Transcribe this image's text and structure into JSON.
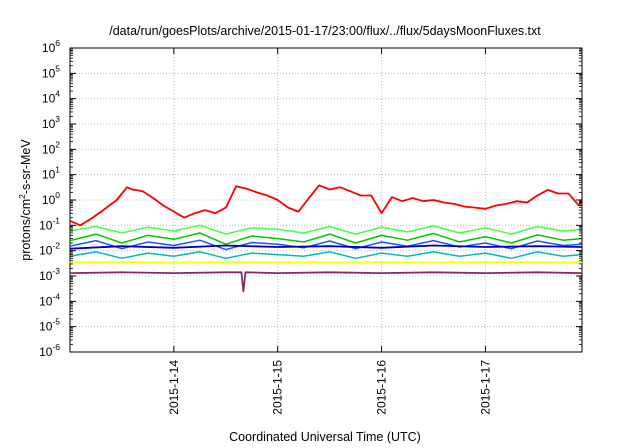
{
  "chart_data": {
    "type": "line",
    "title": "/data/run/goesPlots/archive/2015-01-17/23:00/flux/../flux/5daysMoonFluxes.txt",
    "xlabel": "Coordinated Universal Time (UTC)",
    "ylabel": "protons/cm²-s-sr-MeV",
    "ylabel_parts": {
      "pre": "protons/cm",
      "sup": "2",
      "post": "-s-sr-MeV"
    },
    "yscale": "log",
    "ylim": [
      1e-06,
      1000000.0
    ],
    "xlim": [
      0,
      4.93
    ],
    "x_units": "days after 2015-01-13 00:00 UTC",
    "grid": true,
    "legend": "none",
    "x_ticks": [
      {
        "x": 1,
        "label": "2015-1-14"
      },
      {
        "x": 2,
        "label": "2015-1-15"
      },
      {
        "x": 3,
        "label": "2015-1-16"
      },
      {
        "x": 4,
        "label": "2015-1-17"
      }
    ],
    "y_ticks": [
      {
        "exp": 6,
        "base": "10",
        "sup": "6"
      },
      {
        "exp": 5,
        "base": "10",
        "sup": "5"
      },
      {
        "exp": 4,
        "base": "10",
        "sup": "4"
      },
      {
        "exp": 3,
        "base": "10",
        "sup": "3"
      },
      {
        "exp": 2,
        "base": "10",
        "sup": "2"
      },
      {
        "exp": 1,
        "base": "10",
        "sup": "1"
      },
      {
        "exp": 0,
        "base": "10",
        "sup": "0"
      },
      {
        "exp": -1,
        "base": "10",
        "sup": "-1"
      },
      {
        "exp": -2,
        "base": "10",
        "sup": "-2"
      },
      {
        "exp": -3,
        "base": "10",
        "sup": "-3"
      },
      {
        "exp": -4,
        "base": "10",
        "sup": "-4"
      },
      {
        "exp": -5,
        "base": "10",
        "sup": "-5"
      },
      {
        "exp": -6,
        "base": "10",
        "sup": "-6"
      }
    ],
    "series": [
      {
        "color": "#ffff00",
        "lw": 1.8,
        "x": [
          0,
          0.5,
          1.0,
          1.5,
          2.0,
          2.5,
          3.0,
          3.5,
          4.0,
          4.5,
          4.93
        ],
        "y": [
          0.0035,
          0.0035,
          0.0034,
          0.0035,
          0.0035,
          0.0034,
          0.0035,
          0.0034,
          0.0035,
          0.0035,
          0.0034
        ]
      },
      {
        "color": "#00bbbb",
        "lw": 1.5,
        "x": [
          0,
          0.25,
          0.5,
          0.75,
          1.0,
          1.25,
          1.5,
          1.75,
          2.0,
          2.25,
          2.5,
          2.75,
          3.0,
          3.25,
          3.5,
          3.75,
          4.0,
          4.25,
          4.5,
          4.75,
          4.93
        ],
        "y": [
          0.006,
          0.009,
          0.005,
          0.008,
          0.006,
          0.009,
          0.005,
          0.008,
          0.007,
          0.006,
          0.009,
          0.005,
          0.008,
          0.006,
          0.009,
          0.006,
          0.008,
          0.005,
          0.009,
          0.006,
          0.007
        ]
      },
      {
        "color": "#1a56ff",
        "lw": 1.5,
        "x": [
          0,
          0.25,
          0.5,
          0.75,
          1.0,
          1.25,
          1.5,
          1.75,
          2.0,
          2.25,
          2.5,
          2.75,
          3.0,
          3.25,
          3.5,
          3.75,
          4.0,
          4.25,
          4.5,
          4.75,
          4.93
        ],
        "y": [
          0.015,
          0.025,
          0.012,
          0.022,
          0.016,
          0.026,
          0.011,
          0.021,
          0.018,
          0.013,
          0.024,
          0.012,
          0.022,
          0.015,
          0.025,
          0.014,
          0.02,
          0.012,
          0.024,
          0.016,
          0.018
        ]
      },
      {
        "color": "#00c800",
        "lw": 1.5,
        "x": [
          0,
          0.25,
          0.5,
          0.75,
          1.0,
          1.25,
          1.5,
          1.75,
          2.0,
          2.25,
          2.5,
          2.75,
          3.0,
          3.25,
          3.5,
          3.75,
          4.0,
          4.25,
          4.5,
          4.75,
          4.93
        ],
        "y": [
          0.025,
          0.045,
          0.02,
          0.04,
          0.028,
          0.05,
          0.018,
          0.038,
          0.03,
          0.022,
          0.045,
          0.02,
          0.04,
          0.026,
          0.048,
          0.022,
          0.036,
          0.02,
          0.042,
          0.026,
          0.03
        ]
      },
      {
        "color": "#44ff44",
        "lw": 1.5,
        "x": [
          0,
          0.25,
          0.5,
          0.75,
          1.0,
          1.25,
          1.5,
          1.75,
          2.0,
          2.25,
          2.5,
          2.75,
          3.0,
          3.25,
          3.5,
          3.75,
          4.0,
          4.25,
          4.5,
          4.75,
          4.93
        ],
        "y": [
          0.06,
          0.09,
          0.05,
          0.085,
          0.06,
          0.1,
          0.045,
          0.08,
          0.07,
          0.05,
          0.09,
          0.045,
          0.085,
          0.055,
          0.095,
          0.05,
          0.08,
          0.045,
          0.09,
          0.06,
          0.07
        ]
      },
      {
        "color": "#0000b0",
        "lw": 1.8,
        "x": [
          0,
          0.5,
          1.0,
          1.5,
          2.0,
          2.5,
          3.0,
          3.5,
          4.0,
          4.5,
          4.93
        ],
        "y": [
          0.012,
          0.015,
          0.013,
          0.016,
          0.014,
          0.015,
          0.013,
          0.016,
          0.014,
          0.015,
          0.014
        ]
      },
      {
        "color": "#7d2b6b",
        "lw": 1.8,
        "x": [
          0,
          0.5,
          1.0,
          1.5,
          1.65,
          1.67,
          1.69,
          2.0,
          2.5,
          3.0,
          3.5,
          4.0,
          4.5,
          4.93
        ],
        "y": [
          0.0013,
          0.0014,
          0.0013,
          0.0014,
          0.0014,
          0.00025,
          0.0014,
          0.0013,
          0.0014,
          0.0013,
          0.0014,
          0.0013,
          0.0014,
          0.0013
        ]
      },
      {
        "color": "#ff0000",
        "lw": 1.8,
        "x": [
          0,
          0.1,
          0.2,
          0.3,
          0.45,
          0.55,
          0.6,
          0.7,
          0.8,
          0.9,
          1.0,
          1.1,
          1.2,
          1.3,
          1.4,
          1.5,
          1.6,
          1.7,
          1.8,
          1.9,
          2.0,
          2.1,
          2.2,
          2.3,
          2.4,
          2.5,
          2.6,
          2.7,
          2.8,
          2.9,
          3.0,
          3.1,
          3.2,
          3.3,
          3.4,
          3.5,
          3.6,
          3.7,
          3.8,
          3.9,
          4.0,
          4.1,
          4.2,
          4.3,
          4.4,
          4.5,
          4.6,
          4.7,
          4.8,
          4.9,
          4.93
        ],
        "y": [
          0.15,
          0.1,
          0.18,
          0.35,
          1.0,
          3.2,
          2.6,
          2.2,
          1.2,
          0.6,
          0.35,
          0.2,
          0.3,
          0.4,
          0.3,
          0.5,
          3.5,
          2.8,
          2.0,
          1.5,
          1.0,
          0.5,
          0.35,
          1.2,
          3.8,
          2.6,
          3.2,
          2.2,
          1.5,
          1.5,
          0.3,
          1.3,
          0.9,
          1.2,
          0.9,
          1.0,
          0.8,
          0.7,
          0.55,
          0.5,
          0.45,
          0.6,
          0.7,
          0.9,
          0.8,
          1.5,
          2.5,
          1.8,
          1.8,
          0.6,
          1.1
        ]
      }
    ]
  }
}
